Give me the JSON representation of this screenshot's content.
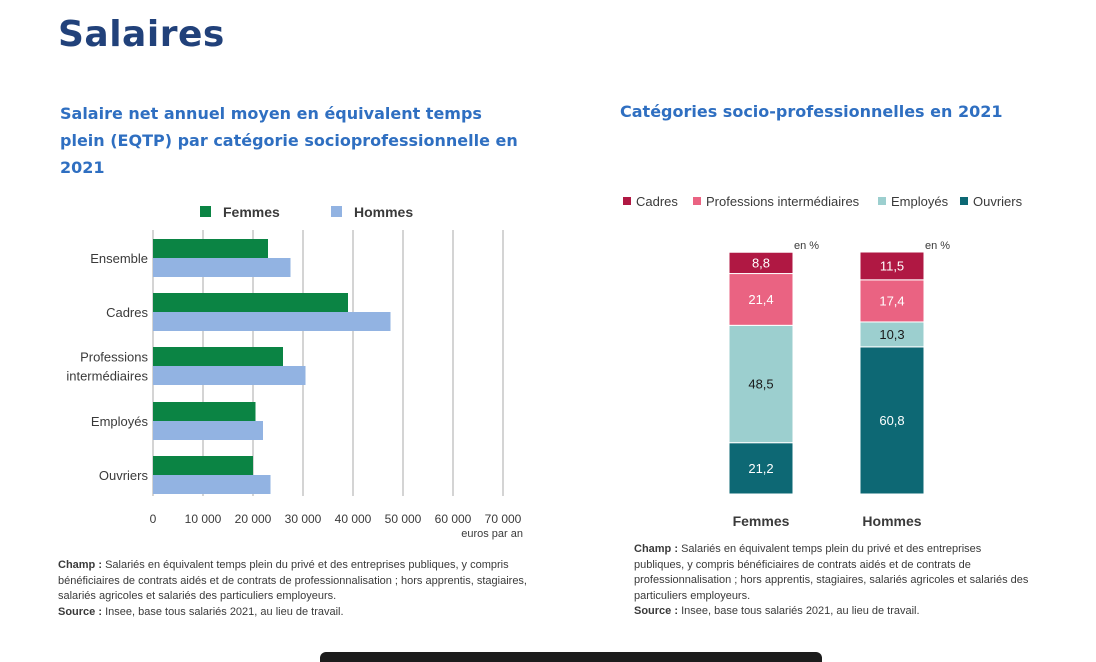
{
  "page": {
    "title": "Salaires"
  },
  "left_chart": {
    "title": "Salaire net annuel moyen en équivalent temps plein (EQTP) par catégorie socioprofessionnelle en 2021",
    "notes": {
      "champ_label": "Champ :",
      "champ_text": "Salariés en équivalent temps plein du privé et des entreprises publiques, y compris bénéficiaires de contrats aidés et de contrats de professionnalisation ;  hors apprentis, stagiaires, salariés agricoles et salariés des particuliers employeurs.",
      "source_label": "Source :",
      "source_text": "Insee, base tous salariés 2021, au lieu de travail."
    }
  },
  "right_chart": {
    "title": "Catégories socio-professionnelles en 2021",
    "unit_label": "en %",
    "notes": {
      "champ_label": "Champ :",
      "champ_text": "Salariés en équivalent temps plein du privé et des entreprises publiques, y compris bénéficiaires de contrats aidés et de contrats de professionnalisation ;  hors apprentis, stagiaires, salariés agricoles et salariés des particuliers employeurs.",
      "source_label": "Source :",
      "source_text": "Insee, base tous salariés 2021, au lieu de travail."
    }
  },
  "chart_data": [
    {
      "type": "bar",
      "orientation": "horizontal",
      "title": "Salaire net annuel moyen en équivalent temps plein (EQTP) par catégorie socioprofessionnelle en 2021",
      "categories": [
        "Ensemble",
        "Cadres",
        "Professions intermédiaires",
        "Employés",
        "Ouvriers"
      ],
      "category_lines": [
        [
          "Ensemble"
        ],
        [
          "Cadres"
        ],
        [
          "Professions",
          "intermédiaires"
        ],
        [
          "Employés"
        ],
        [
          "Ouvriers"
        ]
      ],
      "series": [
        {
          "name": "Femmes",
          "color": "#0b8444",
          "values": [
            23000,
            39000,
            26000,
            20500,
            20000
          ]
        },
        {
          "name": "Hommes",
          "color": "#92b3e2",
          "values": [
            27500,
            47500,
            30500,
            22000,
            23500
          ]
        }
      ],
      "xlim": [
        0,
        70000
      ],
      "xticks": [
        0,
        10000,
        20000,
        30000,
        40000,
        50000,
        60000,
        70000
      ],
      "xtick_labels": [
        "0",
        "10 000",
        "20 000",
        "30 000",
        "40 000",
        "50 000",
        "60 000",
        "70 000"
      ],
      "xlabel": "euros par an",
      "grid": true,
      "legend_position": "top"
    },
    {
      "type": "bar",
      "stacked": true,
      "orientation": "vertical",
      "title": "Catégories socio-professionnelles en 2021",
      "categories": [
        "Femmes",
        "Hommes"
      ],
      "series": [
        {
          "name": "Ouvriers",
          "color": "#0d6874",
          "text_color": "#ffffff",
          "values": [
            21.2,
            60.8
          ]
        },
        {
          "name": "Employés",
          "color": "#9ccfcf",
          "text_color": "#1a1a1a",
          "values": [
            48.5,
            10.3
          ]
        },
        {
          "name": "Professions intermédiaires",
          "color": "#ea6382",
          "text_color": "#ffffff",
          "values": [
            21.4,
            17.4
          ]
        },
        {
          "name": "Cadres",
          "color": "#b01843",
          "text_color": "#ffffff",
          "values": [
            8.8,
            11.5
          ]
        }
      ],
      "value_labels": [
        [
          "21,2",
          "48,5",
          "21,4",
          "8,8"
        ],
        [
          "60,8",
          "10,3",
          "17,4",
          "11,5"
        ]
      ],
      "legend_order": [
        "Cadres",
        "Professions intermédiaires",
        "Employés",
        "Ouvriers"
      ],
      "unit": "en %",
      "ylim": [
        0,
        100
      ],
      "legend_position": "top"
    }
  ]
}
